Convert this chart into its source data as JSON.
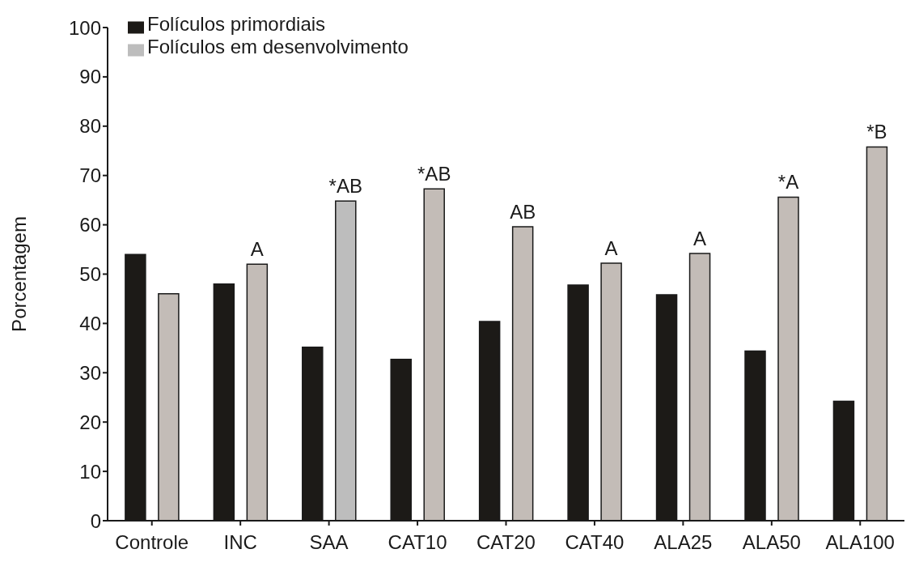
{
  "chart_data": {
    "type": "bar",
    "ylabel": "Porcentagem",
    "categories": [
      "Controle",
      "INC",
      "SAA",
      "CAT10",
      "CAT20",
      "CAT40",
      "ALA25",
      "ALA50",
      "ALA100"
    ],
    "series": [
      {
        "name": "Folículos primordiais",
        "color": "#1c1a17",
        "values": [
          54,
          48,
          35.2,
          32.7,
          40.4,
          47.8,
          45.8,
          34.4,
          24.2
        ]
      },
      {
        "name": "Folículos em desenvolvimento",
        "color": "#bdbdbd",
        "colors": [
          "#c3bcb7",
          "#c3bcb7",
          "#bdbdbd",
          "#c3bcb7",
          "#c3bcb7",
          "#c3bcb7",
          "#c3bcb7",
          "#c3bcb7",
          "#c3bcb7"
        ],
        "values": [
          46,
          52,
          64.8,
          67.3,
          59.6,
          52.2,
          54.2,
          65.6,
          75.8
        ],
        "value_labels": [
          null,
          "A",
          "*AB",
          "*AB",
          "AB",
          "A",
          "A",
          "*A",
          "*B"
        ]
      }
    ],
    "ylim": [
      0,
      100
    ],
    "yticks": [
      0,
      10,
      20,
      30,
      40,
      50,
      60,
      70,
      80,
      90,
      100
    ],
    "grid": false,
    "legend": "top left"
  }
}
